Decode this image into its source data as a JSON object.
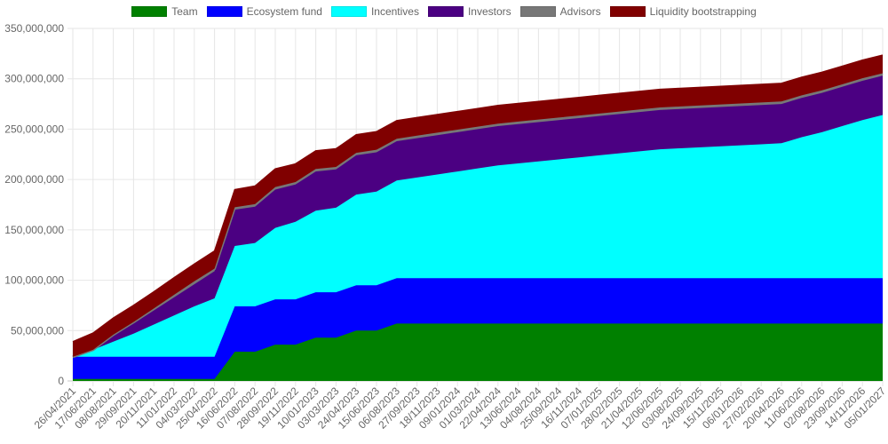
{
  "chart_data": {
    "type": "area",
    "stacked": true,
    "legend_position": "top",
    "grid": true,
    "ylim": [
      0,
      350000000
    ],
    "y_ticks": [
      "0",
      "50,000,000",
      "100,000,000",
      "150,000,000",
      "200,000,000",
      "250,000,000",
      "300,000,000",
      "350,000,000"
    ],
    "x": [
      "26/04/2021",
      "17/06/2021",
      "08/08/2021",
      "29/09/2021",
      "20/11/2021",
      "11/01/2022",
      "04/03/2022",
      "25/04/2022",
      "16/06/2022",
      "07/08/2022",
      "28/09/2022",
      "19/11/2022",
      "10/01/2023",
      "03/03/2023",
      "24/04/2023",
      "15/06/2023",
      "06/08/2023",
      "27/09/2023",
      "18/11/2023",
      "09/01/2024",
      "01/03/2024",
      "22/04/2024",
      "13/06/2024",
      "04/08/2024",
      "25/09/2024",
      "16/11/2024",
      "07/01/2025",
      "28/02/2025",
      "21/04/2025",
      "12/06/2025",
      "03/08/2025",
      "24/09/2025",
      "15/11/2025",
      "06/01/2026",
      "27/02/2026",
      "20/04/2026",
      "11/06/2026",
      "02/08/2026",
      "23/09/2026",
      "14/11/2026",
      "05/01/2027"
    ],
    "series": [
      {
        "name": "Team",
        "color": "#008000",
        "values": [
          2000000,
          2000000,
          2000000,
          2000000,
          2000000,
          2000000,
          2000000,
          2000000,
          29000000,
          29000000,
          36000000,
          36000000,
          43000000,
          43000000,
          50000000,
          50000000,
          57000000,
          57000000,
          57000000,
          57000000,
          57000000,
          57000000,
          57000000,
          57000000,
          57000000,
          57000000,
          57000000,
          57000000,
          57000000,
          57000000,
          57000000,
          57000000,
          57000000,
          57000000,
          57000000,
          57000000,
          57000000,
          57000000,
          57000000,
          57000000,
          57000000
        ]
      },
      {
        "name": "Ecosystem fund",
        "color": "#0000ff",
        "values": [
          22000000,
          22000000,
          22000000,
          22000000,
          22000000,
          22000000,
          22000000,
          22000000,
          45000000,
          45000000,
          45000000,
          45000000,
          45000000,
          45000000,
          45000000,
          45000000,
          45000000,
          45000000,
          45000000,
          45000000,
          45000000,
          45000000,
          45000000,
          45000000,
          45000000,
          45000000,
          45000000,
          45000000,
          45000000,
          45000000,
          45000000,
          45000000,
          45000000,
          45000000,
          45000000,
          45000000,
          45000000,
          45000000,
          45000000,
          45000000,
          45000000
        ]
      },
      {
        "name": "Incentives",
        "color": "#00ffff",
        "values": [
          0,
          7000000,
          15000000,
          23000000,
          32000000,
          41000000,
          50000000,
          58000000,
          60000000,
          63000000,
          71000000,
          77000000,
          81000000,
          84000000,
          90000000,
          93000000,
          97000000,
          100000000,
          103000000,
          106000000,
          109000000,
          112000000,
          114000000,
          116000000,
          118000000,
          120000000,
          122000000,
          124000000,
          126000000,
          128000000,
          129000000,
          130000000,
          131000000,
          132000000,
          133000000,
          134000000,
          140000000,
          145000000,
          151000000,
          157000000,
          162000000
        ]
      },
      {
        "name": "Investors",
        "color": "#4b0082",
        "values": [
          0,
          0,
          6000000,
          10000000,
          14000000,
          18000000,
          22000000,
          27000000,
          36000000,
          36000000,
          38000000,
          37000000,
          39000000,
          38000000,
          39000000,
          39000000,
          39000000,
          39000000,
          39000000,
          39000000,
          39000000,
          39000000,
          39000000,
          39000000,
          39000000,
          39000000,
          39000000,
          39000000,
          39000000,
          39000000,
          39000000,
          39000000,
          39000000,
          39000000,
          39000000,
          39000000,
          39000000,
          39000000,
          39000000,
          39000000,
          39000000
        ]
      },
      {
        "name": "Advisors",
        "color": "#777777",
        "values": [
          0,
          0,
          1000000,
          1500000,
          2000000,
          2500000,
          3000000,
          2500000,
          2500000,
          2500000,
          2500000,
          2500000,
          2500000,
          2500000,
          2500000,
          2500000,
          2500000,
          2500000,
          2500000,
          2500000,
          2500000,
          2500000,
          2500000,
          2500000,
          2500000,
          2500000,
          2500000,
          2500000,
          2500000,
          2500000,
          2500000,
          2500000,
          2500000,
          2500000,
          2500000,
          2500000,
          2500000,
          2500000,
          2500000,
          2500000,
          2500000
        ]
      },
      {
        "name": "Liquidity bootstrapping",
        "color": "#800000",
        "values": [
          15000000,
          16500000,
          16500000,
          16500000,
          16500000,
          17000000,
          17000000,
          17500000,
          17500000,
          18000000,
          18000000,
          18000000,
          18000000,
          18000000,
          18000000,
          18000000,
          18000000,
          18000000,
          18000000,
          18000000,
          18000000,
          18000000,
          18000000,
          18000000,
          18000000,
          18000000,
          18000000,
          18000000,
          18000000,
          18000000,
          18000000,
          18000000,
          18000000,
          18000000,
          18000000,
          18000000,
          18000000,
          18000000,
          18000000,
          18000000,
          18000000
        ]
      }
    ]
  }
}
